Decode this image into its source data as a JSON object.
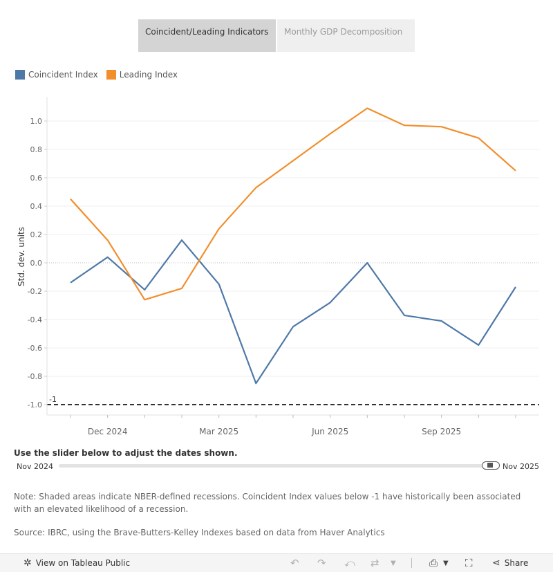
{
  "tabs": [
    {
      "label": "Coincident/Leading Indicators",
      "active": true
    },
    {
      "label": "Monthly GDP Decomposition",
      "active": false
    }
  ],
  "chart_data": {
    "type": "line",
    "title": "",
    "xlabel": "",
    "ylabel": "Std. dev. units",
    "ylim": [
      -1.08,
      1.15
    ],
    "yticks": [
      -1.0,
      -0.8,
      -0.6,
      -0.4,
      -0.2,
      0.0,
      0.2,
      0.4,
      0.6,
      0.8,
      1.0
    ],
    "ytick_labels": [
      "-1.0",
      "-0.8",
      "-0.6",
      "-0.4",
      "-0.2",
      "0.0",
      "0.2",
      "0.4",
      "0.6",
      "0.8",
      "1.0"
    ],
    "x": [
      "2024-11",
      "2024-12",
      "2025-01",
      "2025-02",
      "2025-03",
      "2025-04",
      "2025-05",
      "2025-06",
      "2025-07",
      "2025-08",
      "2025-09",
      "2025-10",
      "2025-11"
    ],
    "xtick_labels": [
      {
        "x": "2024-12",
        "label": "Dec 2024"
      },
      {
        "x": "2025-03",
        "label": "Mar 2025"
      },
      {
        "x": "2025-06",
        "label": "Jun 2025"
      },
      {
        "x": "2025-09",
        "label": "Sep 2025"
      }
    ],
    "series": [
      {
        "name": "Coincident Index",
        "color": "#4e79a7",
        "values": [
          -0.14,
          0.04,
          -0.19,
          0.16,
          -0.15,
          -0.85,
          -0.45,
          -0.28,
          0.0,
          -0.37,
          -0.41,
          -0.58,
          -0.17
        ]
      },
      {
        "name": "Leading Index",
        "color": "#f28e2b",
        "values": [
          0.45,
          0.16,
          -0.26,
          -0.18,
          0.24,
          0.53,
          0.72,
          0.91,
          1.09,
          0.97,
          0.96,
          0.88,
          0.65
        ]
      }
    ],
    "reference_line": {
      "y": -1,
      "label": "-1",
      "style": "dashed"
    },
    "zero_line": {
      "y": 0,
      "style": "dotted"
    },
    "legend_position": "top-left",
    "grid": true
  },
  "slider": {
    "caption": "Use the slider below to adjust the dates shown.",
    "start_label": "Nov 2024",
    "end_label": "Nov 2025"
  },
  "note": "Note: Shaded areas indicate NBER-defined recessions. Coincident Index values below -1 have historically been associated with an elevated likelihood of a recession.",
  "source": "Source: IBRC, using the Brave-Butters-Kelley Indexes based on data from Haver Analytics",
  "toolbar": {
    "view_label": "View on Tableau Public",
    "share_label": "Share"
  }
}
